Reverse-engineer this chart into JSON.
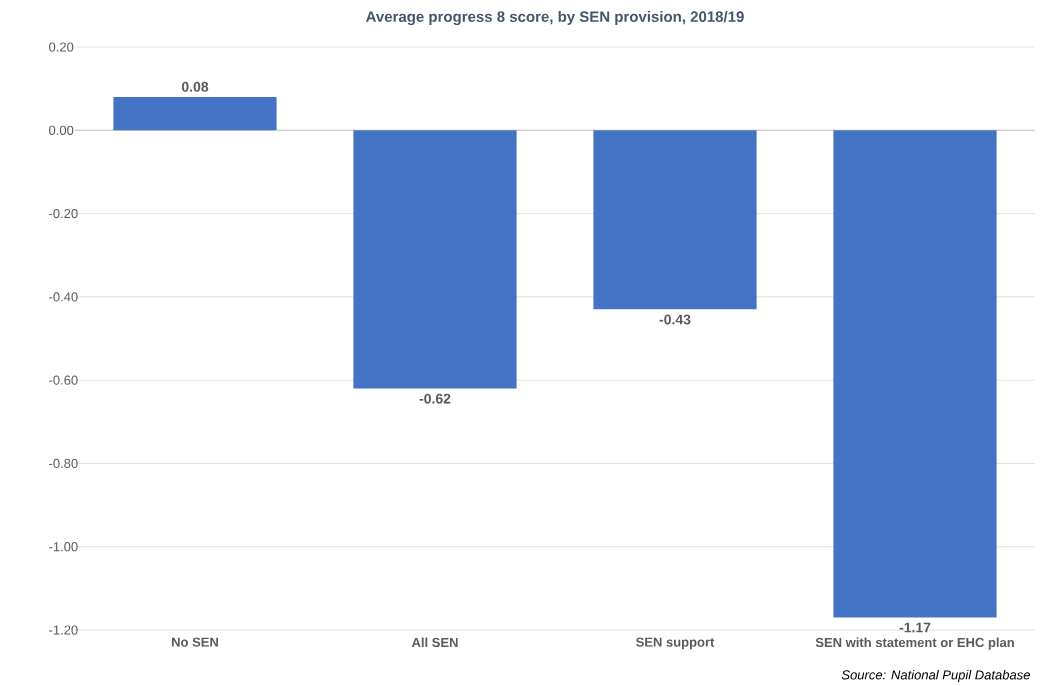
{
  "chart_data": {
    "type": "bar",
    "title": "Average progress 8 score, by SEN provision, 2018/19",
    "categories": [
      "No SEN",
      "All SEN",
      "SEN support",
      "SEN with statement or EHC plan"
    ],
    "values": [
      0.08,
      -0.62,
      -0.43,
      -1.17
    ],
    "value_labels": [
      "0.08",
      "-0.62",
      "-0.43",
      "-1.17"
    ],
    "color": "#4472c4",
    "ylim": [
      -1.2,
      0.2
    ],
    "yticks": [
      {
        "value": -1.2,
        "label": "-1.20"
      },
      {
        "value": -1.0,
        "label": "-1.00"
      },
      {
        "value": -0.8,
        "label": "-0.80"
      },
      {
        "value": -0.6,
        "label": "-0.60"
      },
      {
        "value": -0.4,
        "label": "-0.40"
      },
      {
        "value": -0.2,
        "label": "-0.20"
      },
      {
        "value": 0.0,
        "label": "0.00"
      },
      {
        "value": 0.2,
        "label": "0.20"
      }
    ],
    "grid": "y",
    "annotations": [
      "Source: National Pupil Database"
    ]
  }
}
